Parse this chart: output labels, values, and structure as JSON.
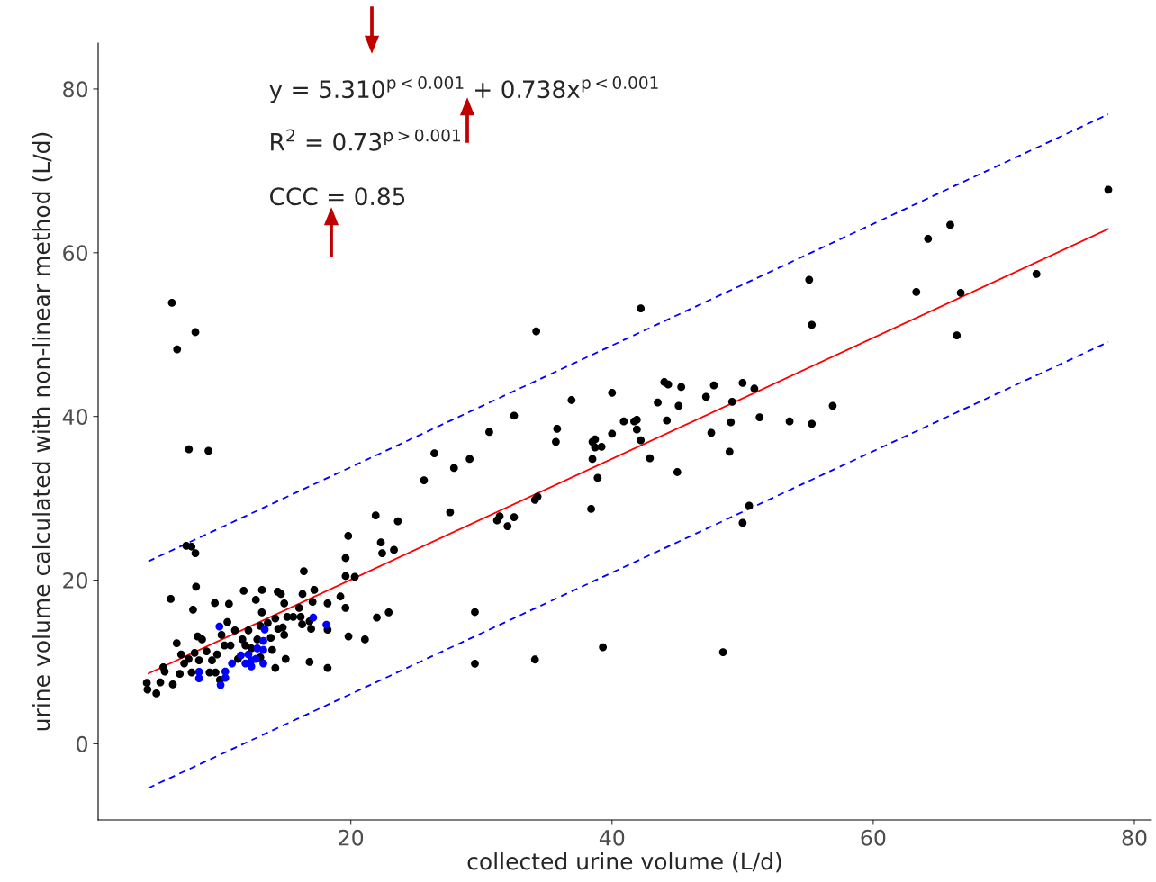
{
  "chart_data": {
    "type": "scatter",
    "xlabel": "collected urine volume (L/d)",
    "ylabel": "urine volume calculated with non-linear method (L/d)",
    "xlim": [
      0.65,
      81.3
    ],
    "ylim": [
      -9.3,
      85.6
    ],
    "xticks": [
      20,
      40,
      60,
      80
    ],
    "yticks": [
      0,
      20,
      40,
      60,
      80
    ],
    "grid": false,
    "legend": false,
    "marker": "circle",
    "annotations": [
      "y = 5.310$^{p<0.001}$ + 0.738x$^{p<0.001}$",
      "R$^{2}$ = 0.73$^{p>0.001}$",
      "CCC = 0.85"
    ],
    "series": [
      {
        "color": "#000000",
        "x": [
          6.3,
          6.7,
          8.1,
          7.6,
          9.1,
          7.4,
          7.8,
          8.1,
          8.15,
          6.21,
          11.8,
          13.2,
          14.4,
          16.3,
          17.2,
          16.4,
          19.6,
          19.8,
          19.6,
          20.3,
          21.9,
          22.3,
          22.4,
          23.3,
          23.6,
          19.2,
          14.65,
          12.73,
          10.67,
          9.59,
          7.92,
          25.6,
          26.4,
          27.6,
          27.9,
          29.1,
          29.5,
          29.5,
          30.6,
          31.2,
          31.4,
          32.0,
          32.5,
          32.5,
          34.1,
          34.3,
          34.2,
          34.1,
          35.7,
          35.8,
          36.9,
          38.4,
          38.5,
          38.7,
          38.5,
          38.7,
          38.9,
          39.2,
          39.3,
          40.0,
          40.0,
          40.9,
          41.7,
          41.9,
          41.9,
          42.2,
          42.2,
          42.9,
          43.5,
          44.0,
          44.3,
          44.2,
          45.1,
          45.0,
          45.3,
          47.2,
          47.8,
          47.6,
          48.5,
          49.0,
          49.1,
          49.2,
          50.0,
          50.0,
          50.5,
          50.9,
          51.3,
          53.6,
          55.1,
          55.3,
          55.3,
          56.9,
          63.3,
          64.2,
          65.9,
          66.4,
          66.7,
          72.5,
          78.0,
          4.38,
          4.43,
          5.11,
          5.41,
          5.64,
          5.75,
          6.37,
          6.67,
          6.9,
          7.01,
          7.24,
          7.58,
          7.81,
          8.04,
          8.27,
          8.38,
          8.61,
          8.95,
          9.18,
          9.37,
          9.64,
          9.76,
          9.98,
          10.1,
          10.33,
          10.55,
          10.79,
          11.13,
          11.36,
          11.7,
          11.93,
          12.16,
          12.38,
          12.84,
          13.07,
          13.19,
          13.07,
          13.64,
          13.87,
          13.98,
          14.22,
          14.22,
          14.44,
          14.79,
          14.9,
          15.01,
          14.9,
          15.13,
          15.59,
          16.04,
          16.16,
          16.27,
          16.84,
          16.96,
          16.84,
          17.07,
          18.22,
          18.22,
          18.22,
          19.59,
          19.82,
          21.08,
          21.99,
          22.9
        ],
        "values": [
          53.9,
          48.2,
          50.3,
          36.0,
          35.8,
          24.2,
          24.1,
          23.3,
          19.2,
          17.7,
          18.7,
          18.8,
          18.6,
          18.3,
          18.8,
          21.1,
          22.7,
          25.4,
          20.5,
          20.4,
          27.9,
          24.6,
          23.3,
          23.7,
          27.2,
          18.0,
          18.3,
          17.6,
          17.1,
          17.2,
          16.4,
          32.2,
          35.5,
          28.3,
          33.7,
          34.8,
          16.1,
          9.8,
          38.1,
          27.3,
          27.8,
          26.6,
          27.7,
          40.1,
          29.8,
          30.2,
          50.4,
          10.3,
          36.9,
          38.5,
          42.0,
          28.7,
          36.9,
          36.2,
          34.8,
          37.2,
          32.5,
          36.3,
          11.8,
          42.9,
          37.9,
          39.4,
          39.4,
          39.6,
          38.4,
          53.2,
          37.1,
          34.9,
          41.7,
          44.2,
          43.9,
          39.5,
          41.3,
          33.2,
          43.6,
          42.4,
          43.8,
          38.0,
          11.2,
          35.7,
          39.3,
          41.8,
          44.1,
          27.0,
          29.1,
          43.4,
          39.9,
          39.4,
          56.7,
          51.2,
          39.1,
          41.3,
          55.2,
          61.7,
          63.4,
          49.9,
          55.1,
          57.4,
          67.7,
          7.45,
          6.64,
          6.16,
          7.52,
          9.35,
          8.84,
          7.26,
          12.29,
          8.55,
          10.93,
          9.83,
          10.38,
          8.73,
          11.11,
          13.13,
          10.2,
          12.76,
          11.3,
          8.73,
          10.2,
          8.73,
          10.93,
          7.81,
          13.31,
          12.03,
          14.89,
          12.03,
          13.87,
          10.38,
          12.76,
          12.03,
          13.87,
          11.66,
          12.76,
          10.56,
          16.07,
          14.42,
          14.78,
          12.95,
          11.48,
          9.28,
          15.33,
          14.05,
          14.23,
          13.31,
          10.38,
          17.17,
          15.52,
          15.52,
          16.62,
          15.52,
          14.6,
          10.01,
          14.05,
          14.97,
          17.35,
          9.28,
          17.17,
          13.94,
          16.62,
          13.13,
          12.76,
          15.44,
          16.07
        ]
      },
      {
        "color": "#0000ff",
        "x": [
          9.94,
          8.38,
          8.38,
          10.03,
          10.39,
          10.39,
          10.9,
          11.58,
          12.16,
          12.38,
          11.93,
          12.38,
          12.73,
          12.84,
          13.3,
          13.3,
          13.3,
          13.41,
          17.12,
          18.13
        ],
        "values": [
          14.34,
          8.8,
          8.0,
          7.19,
          8.84,
          8.07,
          9.83,
          10.82,
          10.93,
          10.2,
          9.83,
          9.46,
          10.38,
          11.66,
          11.48,
          12.58,
          9.83,
          13.98,
          15.44,
          14.56
        ]
      },
      {
        "type": "line",
        "color": "#ff0000",
        "line_style": "solid",
        "marker": "none",
        "x": [
          4.5,
          78
        ],
        "values": [
          8.6,
          62.9
        ]
      },
      {
        "type": "line",
        "color": "#0000ff",
        "line_style": "dashed",
        "marker": "none",
        "x": [
          4.5,
          78
        ],
        "values": [
          22.3,
          76.9
        ]
      },
      {
        "type": "line",
        "color": "#0000ff",
        "line_style": "dashed",
        "marker": "none",
        "x": [
          4.5,
          78
        ],
        "values": [
          -5.4,
          49.1
        ]
      }
    ]
  }
}
